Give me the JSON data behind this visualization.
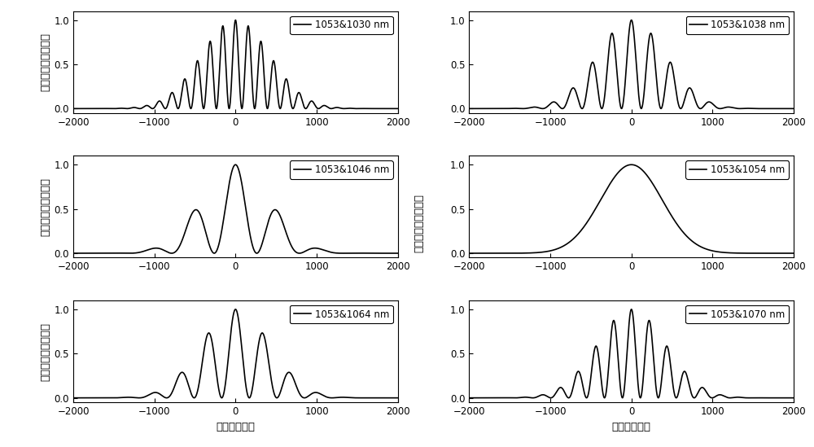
{
  "panels": [
    {
      "label": "1053&1030 nm",
      "lam1": 1053,
      "lam2": 1030,
      "sigma": 600
    },
    {
      "label": "1053&1038 nm",
      "lam1": 1053,
      "lam2": 1038,
      "sigma": 600
    },
    {
      "label": "1053&1046 nm",
      "lam1": 1053,
      "lam2": 1046,
      "sigma": 600
    },
    {
      "label": "1053&1054 nm",
      "lam1": 1053,
      "lam2": 1054,
      "sigma": 600
    },
    {
      "label": "1053&1064 nm",
      "lam1": 1053,
      "lam2": 1064,
      "sigma": 600
    },
    {
      "label": "1053&1070 nm",
      "lam1": 1053,
      "lam2": 1070,
      "sigma": 600
    }
  ],
  "xlim": [
    -2000,
    2000
  ],
  "ylim": [
    -0.05,
    1.1
  ],
  "yticks": [
    0,
    0.5,
    1
  ],
  "xticks": [
    -2000,
    -1000,
    0,
    1000,
    2000
  ],
  "ylabel_left": "光强（归一化单位）",
  "xlabel": "时间（飞秒）",
  "line_color": "black",
  "line_width": 1.2,
  "legend_fontsize": 8.5,
  "tick_fontsize": 8.5,
  "label_fontsize": 9.5,
  "background_color": "white"
}
